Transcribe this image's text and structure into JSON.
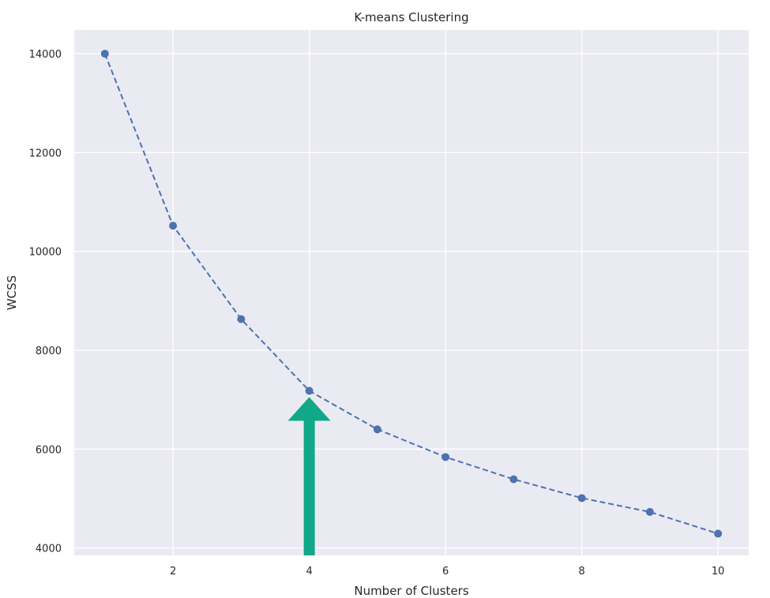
{
  "chart_data": {
    "type": "line",
    "title": "K-means Clustering",
    "xlabel": "Number of Clusters",
    "ylabel": "WCSS",
    "x": [
      1,
      2,
      3,
      4,
      5,
      6,
      7,
      8,
      9,
      10
    ],
    "series": [
      {
        "values": [
          14000,
          10520,
          8630,
          7180,
          6400,
          5840,
          5390,
          5010,
          4730,
          4290
        ],
        "color": "#4C72B0",
        "line_style": "dashed",
        "marker": "circle"
      }
    ],
    "xticks": [
      2,
      4,
      6,
      8,
      10
    ],
    "yticks": [
      4000,
      6000,
      8000,
      10000,
      12000,
      14000
    ],
    "xlim": [
      0.55,
      10.45
    ],
    "ylim": [
      3850,
      14480
    ],
    "grid": true,
    "background_color": "#EAEAF2",
    "annotation": {
      "type": "arrow",
      "points_to_x": 4,
      "points_to_y": 7180,
      "color": "#10A888"
    }
  }
}
